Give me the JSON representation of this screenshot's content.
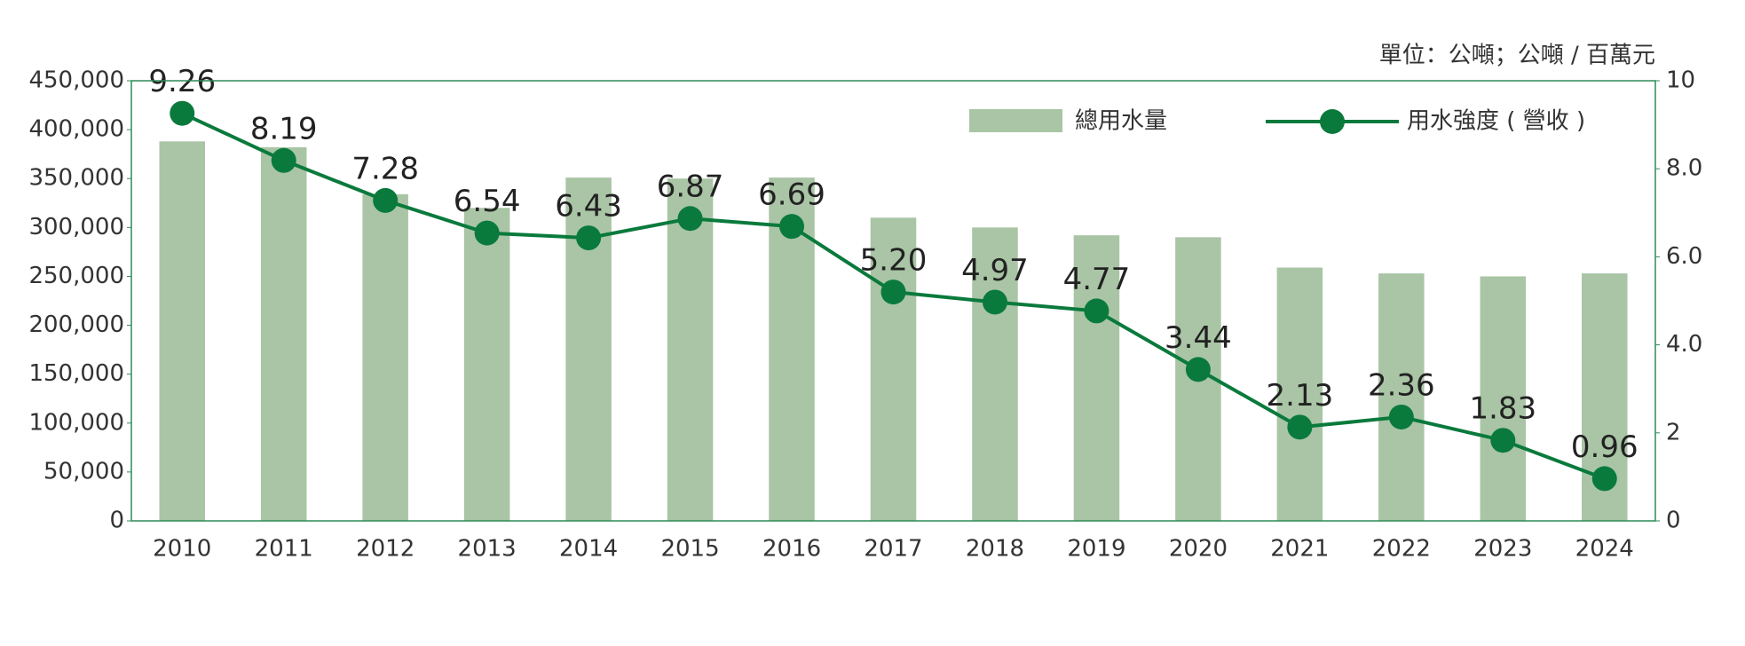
{
  "chart_data": {
    "type": "bar-line",
    "subtitle": "單位：公噸；公噸 / 百萬元",
    "categories": [
      "2010",
      "2011",
      "2012",
      "2013",
      "2014",
      "2015",
      "2016",
      "2017",
      "2018",
      "2019",
      "2020",
      "2021",
      "2022",
      "2023",
      "2024"
    ],
    "series": [
      {
        "name": "總用水量",
        "type": "bar",
        "color": "#a9c5a5",
        "values": [
          388000,
          382000,
          334000,
          320000,
          351000,
          350000,
          351000,
          310000,
          300000,
          292000,
          290000,
          259000,
          253000,
          250000,
          253000
        ]
      },
      {
        "name": "用水強度 ( 營收 )",
        "type": "line",
        "axis": "y2",
        "color": "#0a7a3c",
        "values": [
          9.26,
          8.19,
          7.28,
          6.54,
          6.43,
          6.87,
          6.69,
          5.2,
          4.97,
          4.77,
          3.44,
          2.13,
          2.36,
          1.83,
          0.96
        ],
        "value_labels": [
          "9.26",
          "8.19",
          "7.28",
          "6.54",
          "6.43",
          "6.87",
          "6.69",
          "5.20",
          "4.97",
          "4.77",
          "3.44",
          "2.13",
          "2.36",
          "1.83",
          "0.96"
        ]
      }
    ],
    "ylim": [
      0,
      450000
    ],
    "yticks": [
      0,
      {
        "value": 50000,
        "label": "50,000"
      },
      {
        "value": 100000,
        "label": "100,000"
      },
      {
        "value": 150000,
        "label": "150,000"
      },
      {
        "value": 200000,
        "label": "200,000"
      },
      {
        "value": 250000,
        "label": "250,000"
      },
      {
        "value": 300000,
        "label": "300,000"
      },
      {
        "value": 350000,
        "label": "350,000"
      },
      {
        "value": 400000,
        "label": "400,000"
      },
      {
        "value": 450000,
        "label": "450,000"
      }
    ],
    "y2lim": [
      0,
      10
    ],
    "y2ticks": [
      0,
      2,
      {
        "value": 4,
        "label": "4.0"
      },
      {
        "value": 6,
        "label": "6.0"
      },
      {
        "value": 8,
        "label": "8.0"
      },
      10
    ],
    "frame_color": "#2e8b57"
  }
}
